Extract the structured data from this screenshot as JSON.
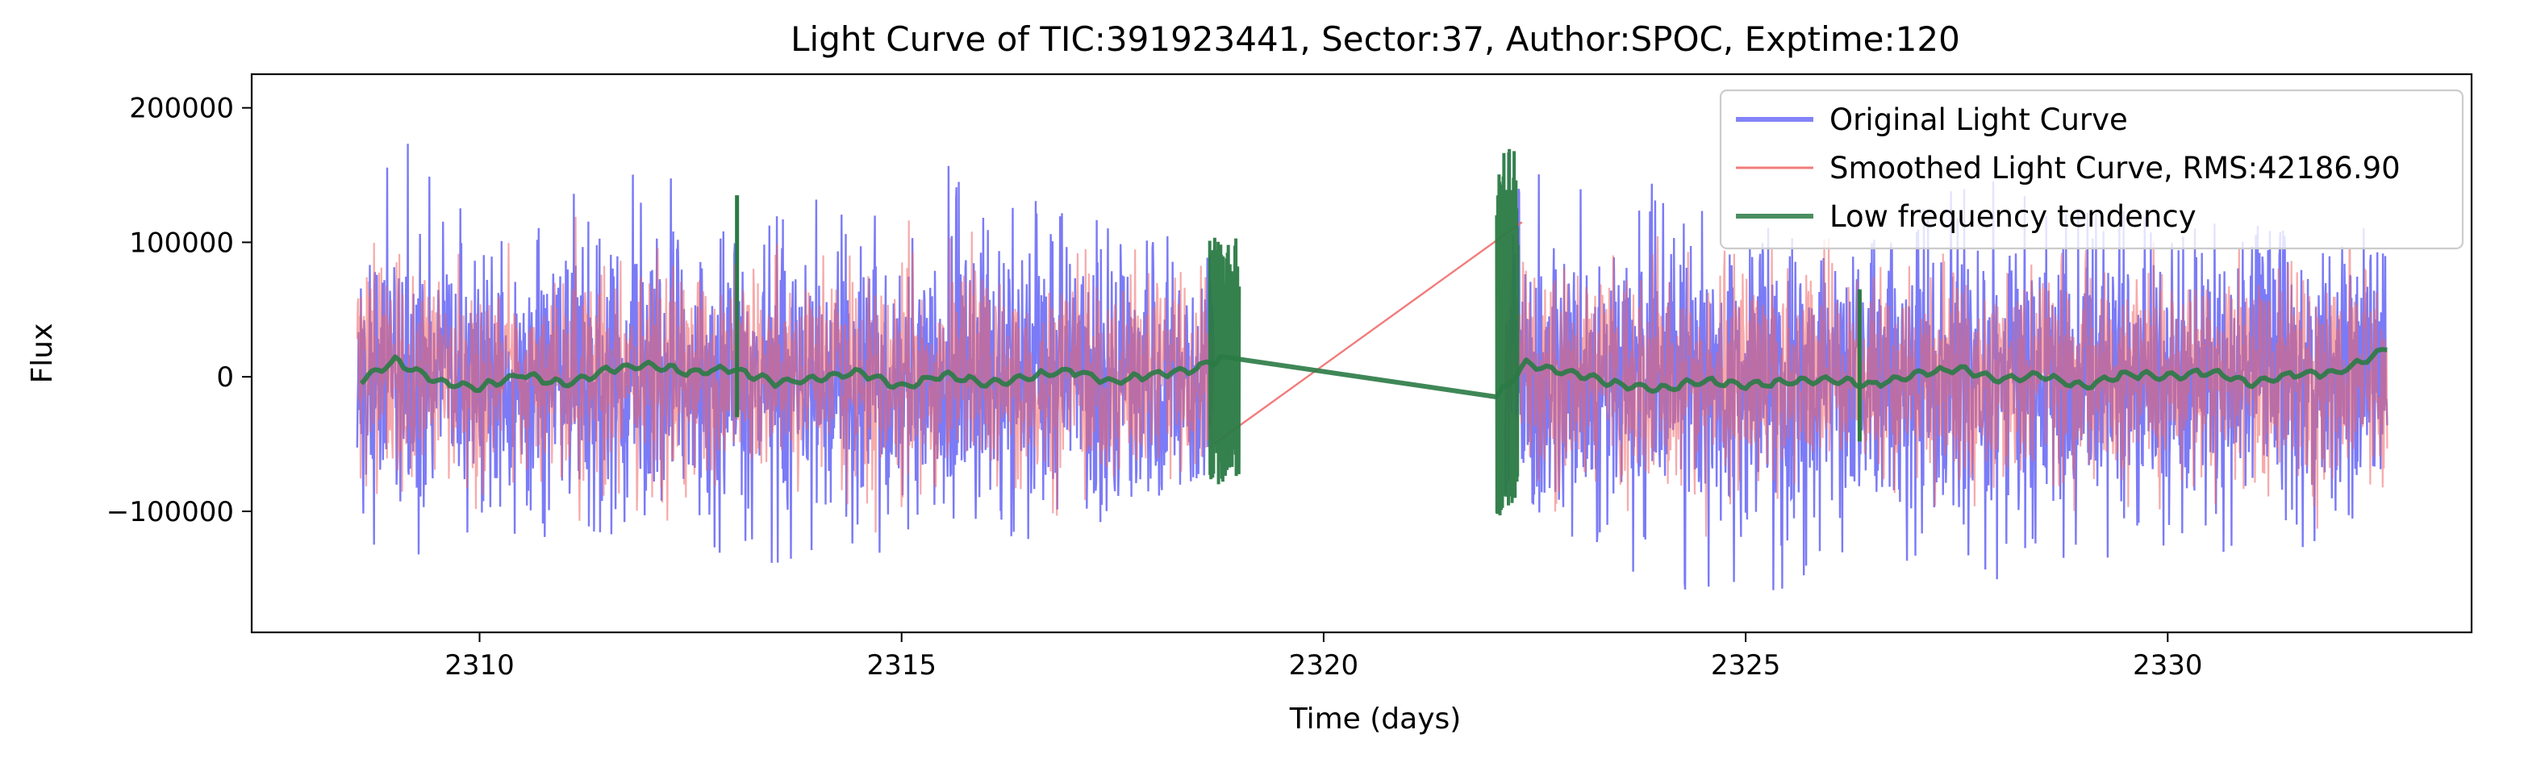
{
  "chart_data": {
    "type": "line",
    "title": "Light Curve of TIC:391923441, Sector:37, Author:SPOC, Exptime:120",
    "xlabel": "Time (days)",
    "ylabel": "Flux",
    "xlim": [
      2307.3,
      2333.6
    ],
    "ylim": [
      -190000,
      225000
    ],
    "x_ticks": [
      2310,
      2315,
      2320,
      2325,
      2330
    ],
    "x_tick_labels": [
      "2310",
      "2315",
      "2320",
      "2325",
      "2330"
    ],
    "y_ticks": [
      200000,
      100000,
      0,
      -100000
    ],
    "y_tick_labels": [
      "200000",
      "100000",
      "0",
      "−100000"
    ],
    "grid": false,
    "legend_position": "top-right",
    "segments": [
      [
        2308.55,
        2318.7
      ],
      [
        2322.15,
        2332.6
      ]
    ],
    "series": [
      {
        "name": "Original Light Curve",
        "color": "#5a5af5",
        "envelope": [
          {
            "x": 2308.55,
            "min": -115000,
            "max": 70000
          },
          {
            "x": 2308.75,
            "min": -152000,
            "max": 205000
          },
          {
            "x": 2310.0,
            "min": -120000,
            "max": 110000
          },
          {
            "x": 2312.2,
            "min": -118000,
            "max": 168000
          },
          {
            "x": 2313.0,
            "min": -145000,
            "max": 108000
          },
          {
            "x": 2315.1,
            "min": -128000,
            "max": 168000
          },
          {
            "x": 2317.0,
            "min": -118000,
            "max": 125000
          },
          {
            "x": 2318.7,
            "min": -70000,
            "max": 95000
          },
          {
            "x": 2322.15,
            "min": -100000,
            "max": 150000
          },
          {
            "x": 2322.45,
            "min": -95000,
            "max": 160000
          },
          {
            "x": 2323.8,
            "min": -170000,
            "max": 150000
          },
          {
            "x": 2325.2,
            "min": -160000,
            "max": 110000
          },
          {
            "x": 2327.9,
            "min": -155000,
            "max": 148000
          },
          {
            "x": 2330.0,
            "min": -140000,
            "max": 115000
          },
          {
            "x": 2332.6,
            "min": -120000,
            "max": 110000
          }
        ]
      },
      {
        "name": "Smoothed Light Curve, RMS:42186.90",
        "color": "#f06464",
        "rms": 42186.9,
        "bridge": [
          {
            "x": 2318.7,
            "y": -50000
          },
          {
            "x": 2322.35,
            "y": 115000
          }
        ]
      },
      {
        "name": "Low frequency tendency",
        "color": "#2a7a45",
        "trend": [
          {
            "x": 2308.6,
            "y": -2000
          },
          {
            "x": 2309.0,
            "y": 12000
          },
          {
            "x": 2309.5,
            "y": -3000
          },
          {
            "x": 2310.0,
            "y": -8000
          },
          {
            "x": 2310.5,
            "y": 2000
          },
          {
            "x": 2311.0,
            "y": -6000
          },
          {
            "x": 2311.5,
            "y": 5000
          },
          {
            "x": 2312.0,
            "y": 9000
          },
          {
            "x": 2312.5,
            "y": 3000
          },
          {
            "x": 2313.0,
            "y": 6000
          },
          {
            "x": 2313.5,
            "y": -4000
          },
          {
            "x": 2314.0,
            "y": -2000
          },
          {
            "x": 2314.5,
            "y": 4000
          },
          {
            "x": 2315.0,
            "y": -8000
          },
          {
            "x": 2315.5,
            "y": 2000
          },
          {
            "x": 2316.0,
            "y": -5000
          },
          {
            "x": 2316.5,
            "y": 0
          },
          {
            "x": 2317.0,
            "y": 5000
          },
          {
            "x": 2317.5,
            "y": -4000
          },
          {
            "x": 2318.0,
            "y": 2000
          },
          {
            "x": 2318.5,
            "y": 6000
          },
          {
            "x": 2318.8,
            "y": 15000
          },
          {
            "x": 2322.05,
            "y": -15000
          },
          {
            "x": 2322.4,
            "y": 10000
          },
          {
            "x": 2323.0,
            "y": 2000
          },
          {
            "x": 2323.5,
            "y": -6000
          },
          {
            "x": 2324.0,
            "y": -9000
          },
          {
            "x": 2324.5,
            "y": -3000
          },
          {
            "x": 2325.0,
            "y": -6000
          },
          {
            "x": 2325.5,
            "y": -4000
          },
          {
            "x": 2326.0,
            "y": -2000
          },
          {
            "x": 2326.5,
            "y": -6000
          },
          {
            "x": 2327.0,
            "y": 2000
          },
          {
            "x": 2327.5,
            "y": 6000
          },
          {
            "x": 2328.0,
            "y": -2000
          },
          {
            "x": 2328.5,
            "y": 1000
          },
          {
            "x": 2329.0,
            "y": -7000
          },
          {
            "x": 2329.5,
            "y": 2000
          },
          {
            "x": 2330.0,
            "y": 0
          },
          {
            "x": 2330.5,
            "y": 4000
          },
          {
            "x": 2331.0,
            "y": -5000
          },
          {
            "x": 2331.5,
            "y": 2000
          },
          {
            "x": 2332.0,
            "y": 3000
          },
          {
            "x": 2332.6,
            "y": 20000
          }
        ],
        "spikes": [
          {
            "x": 2313.05,
            "min": -30000,
            "max": 135000
          },
          {
            "x": 2326.35,
            "min": -48000,
            "max": 65000
          }
        ],
        "dense_bands": [
          {
            "from": 2318.65,
            "to": 2319.0,
            "min": -80000,
            "max": 105000
          },
          {
            "from": 2322.05,
            "to": 2322.3,
            "min": -105000,
            "max": 172000
          }
        ]
      }
    ]
  }
}
